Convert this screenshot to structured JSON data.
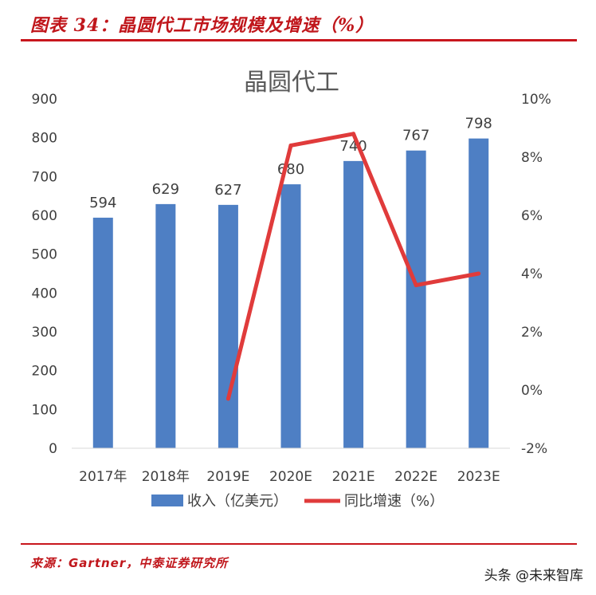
{
  "header": {
    "title": "图表 34：晶圆代工市场规模及增速（%）"
  },
  "source_note": "来源：Gartner，中泰证券研究所",
  "watermark": "头条 @未来智库",
  "colors": {
    "bar": "#4e7fc4",
    "line": "#e03b3b",
    "accent_red": "#c8161d"
  },
  "chart_data": {
    "type": "bar",
    "title": "晶圆代工",
    "categories": [
      "2017年",
      "2018年",
      "2019E",
      "2020E",
      "2021E",
      "2022E",
      "2023E"
    ],
    "series": [
      {
        "name": "收入（亿美元）",
        "type": "bar",
        "axis": "left",
        "values": [
          594,
          629,
          627,
          680,
          740,
          767,
          798
        ],
        "labels": [
          "594",
          "629",
          "627",
          "680",
          "740",
          "767",
          "798"
        ]
      },
      {
        "name": "同比增速（%）",
        "type": "line",
        "axis": "right",
        "values": [
          null,
          null,
          -0.3,
          8.4,
          8.8,
          3.6,
          4.0
        ]
      }
    ],
    "ylim_left": [
      0,
      900
    ],
    "yticks_left": [
      "0",
      "100",
      "200",
      "300",
      "400",
      "500",
      "600",
      "700",
      "800",
      "900"
    ],
    "ylim_right": [
      -2,
      10
    ],
    "yticks_right": [
      "-2%",
      "0%",
      "2%",
      "4%",
      "6%",
      "8%",
      "10%"
    ],
    "legend_position": "bottom",
    "grid": false
  }
}
